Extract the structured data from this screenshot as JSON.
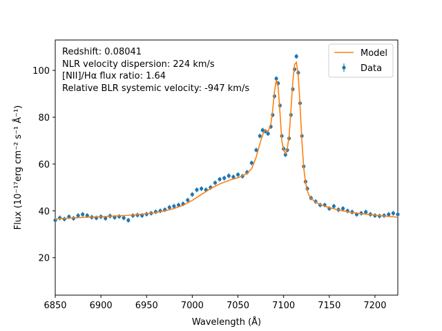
{
  "chart_data": {
    "type": "line",
    "title": "",
    "xlabel": "Wavelength (Å)",
    "ylabel": "Flux (10⁻¹⁷erg cm⁻² s⁻¹ Å⁻¹)",
    "xlim": [
      6850,
      7225
    ],
    "ylim": [
      4,
      113
    ],
    "xticks": [
      6850,
      6900,
      6950,
      7000,
      7050,
      7100,
      7150,
      7200
    ],
    "yticks": [
      20,
      40,
      60,
      80,
      100
    ],
    "grid": false,
    "legend_position": "top-right",
    "annotations": [
      "Redshift: 0.08041",
      "NLR velocity dispersion: 224 km/s",
      "[NII]/Hα flux ratio: 1.64",
      "Relative BLR systemic velocity: -947 km/s"
    ],
    "series": [
      {
        "name": "Model",
        "kind": "line",
        "color": "#ff7f0e",
        "x": [
          6850,
          6860,
          6870,
          6880,
          6890,
          6900,
          6910,
          6920,
          6930,
          6940,
          6950,
          6960,
          6970,
          6980,
          6990,
          7000,
          7010,
          7020,
          7030,
          7040,
          7050,
          7055,
          7060,
          7065,
          7070,
          7075,
          7078,
          7080,
          7083,
          7086,
          7088,
          7090,
          7092,
          7094,
          7096,
          7098,
          7100,
          7102,
          7104,
          7106,
          7108,
          7110,
          7112,
          7114,
          7116,
          7118,
          7120,
          7122,
          7124,
          7126,
          7128,
          7130,
          7135,
          7140,
          7145,
          7150,
          7160,
          7170,
          7180,
          7190,
          7200,
          7210,
          7225
        ],
        "values": [
          36.5,
          36.8,
          37.0,
          37.2,
          37.4,
          37.5,
          37.7,
          37.9,
          38.1,
          38.4,
          38.8,
          39.3,
          40.0,
          41.0,
          42.4,
          44.5,
          47.0,
          49.5,
          51.5,
          53.0,
          54.2,
          55.0,
          56.0,
          58.0,
          63.0,
          70.0,
          73.5,
          74.5,
          74.0,
          77.0,
          83.0,
          91.0,
          96.0,
          93.0,
          82.0,
          70.0,
          66.0,
          64.5,
          66.5,
          72.0,
          83.0,
          95.0,
          102.5,
          103.5,
          98.0,
          85.0,
          70.0,
          58.5,
          52.0,
          48.5,
          46.5,
          45.3,
          43.8,
          42.7,
          42.0,
          41.4,
          40.4,
          39.6,
          39.0,
          38.6,
          38.2,
          37.8,
          37.3
        ]
      },
      {
        "name": "Data",
        "kind": "errorbar",
        "color": "#1f77b4",
        "x": [
          6850,
          6855,
          6860,
          6865,
          6870,
          6875,
          6880,
          6885,
          6890,
          6895,
          6900,
          6905,
          6910,
          6915,
          6920,
          6925,
          6930,
          6935,
          6940,
          6945,
          6950,
          6955,
          6960,
          6965,
          6970,
          6975,
          6980,
          6985,
          6990,
          6995,
          7000,
          7005,
          7010,
          7015,
          7020,
          7025,
          7030,
          7035,
          7040,
          7045,
          7050,
          7055,
          7060,
          7065,
          7070,
          7074,
          7077,
          7080,
          7083,
          7086,
          7088,
          7090,
          7092,
          7094,
          7096,
          7098,
          7100,
          7102,
          7104,
          7106,
          7108,
          7110,
          7112,
          7114,
          7116,
          7118,
          7120,
          7122,
          7124,
          7126,
          7130,
          7135,
          7140,
          7145,
          7150,
          7155,
          7160,
          7165,
          7170,
          7175,
          7180,
          7185,
          7190,
          7195,
          7200,
          7205,
          7210,
          7215,
          7220,
          7225
        ],
        "values": [
          36.0,
          37.0,
          36.5,
          37.5,
          36.8,
          38.0,
          38.5,
          38.0,
          37.3,
          37.0,
          37.5,
          36.8,
          37.8,
          37.2,
          37.6,
          37.0,
          36.0,
          38.0,
          38.2,
          38.0,
          38.6,
          39.0,
          39.6,
          40.0,
          40.5,
          41.5,
          42.0,
          42.5,
          43.0,
          44.6,
          47.0,
          49.0,
          49.5,
          49.0,
          50.0,
          52.0,
          53.5,
          54.0,
          55.0,
          54.5,
          55.5,
          54.8,
          56.5,
          60.5,
          66.0,
          72.0,
          74.5,
          74.0,
          73.0,
          76.0,
          81.0,
          89.0,
          96.5,
          94.5,
          85.0,
          72.0,
          66.5,
          64.0,
          66.0,
          71.0,
          81.0,
          92.0,
          100.5,
          106.0,
          99.0,
          86.0,
          72.0,
          59.0,
          52.5,
          49.5,
          45.5,
          44.0,
          42.5,
          42.5,
          41.0,
          42.0,
          40.5,
          41.0,
          40.0,
          39.5,
          38.5,
          39.0,
          39.5,
          38.5,
          38.0,
          37.8,
          38.0,
          38.5,
          39.0,
          38.5
        ],
        "error": 1.0
      }
    ]
  }
}
